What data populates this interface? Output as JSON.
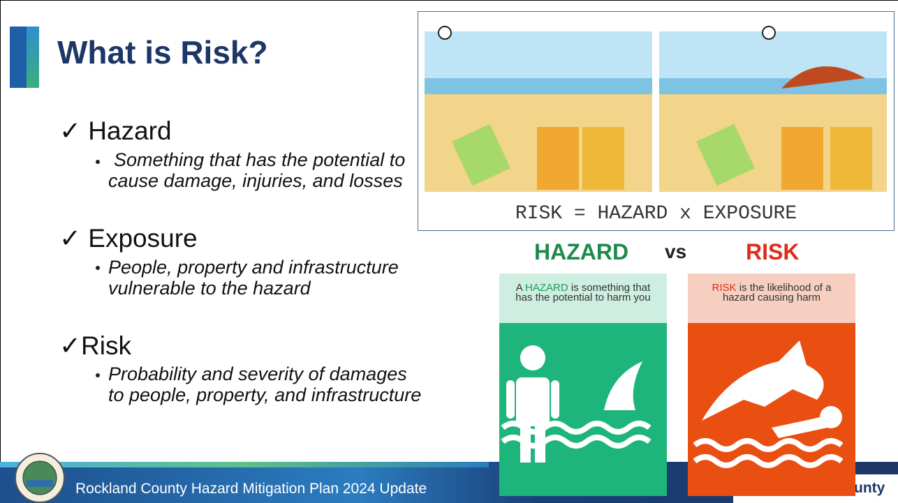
{
  "slide": {
    "title": "What is Risk?",
    "bullets": [
      {
        "check": "✓",
        "label": "Hazard",
        "detail": "Something that has the potential to cause damage, injuries, and losses"
      },
      {
        "check": "✓",
        "label": "Exposure",
        "detail": "People, property and infrastructure vulnerable to the hazard"
      },
      {
        "check": "✓",
        "label": "Risk",
        "detail": "Probability and severity of damages to people, property, and infrastructure"
      }
    ],
    "illustration_caption": "RISK = HAZARD x EXPOSURE",
    "comparison": {
      "left_heading": "HAZARD",
      "middle": "vs",
      "right_heading": "RISK",
      "left_text": {
        "prefix": "A",
        "keyword": "HAZARD",
        "rest": "is something that has the potential to harm you"
      },
      "right_text": {
        "keyword": "RISK",
        "rest": "is the likelihood of a hazard causing harm"
      }
    },
    "footer": "Rockland County Hazard Mitigation Plan 2024 Update",
    "corner_logo_text": "County"
  }
}
